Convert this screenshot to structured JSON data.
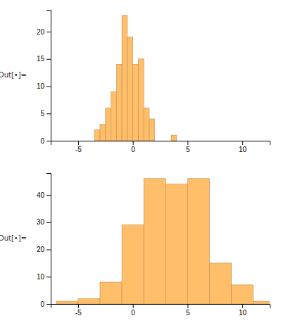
{
  "chart_data": [
    {
      "type": "histogram",
      "x": [
        -3.5,
        -3.0,
        -2.5,
        -2.0,
        -1.5,
        -1.0,
        -0.5,
        0.0,
        0.5,
        1.0,
        1.5,
        3.5
      ],
      "values": [
        2,
        3,
        6,
        9,
        14,
        23,
        19,
        14,
        15,
        6,
        4,
        1
      ],
      "bin_width": 0.5,
      "xlim": [
        -7.5,
        12.5
      ],
      "ylim": [
        0,
        24
      ],
      "xticks": [
        -5,
        0,
        5,
        10
      ],
      "yticks": [
        0,
        5,
        10,
        15,
        20
      ],
      "ylabel": "Out[•]=",
      "color": "#FFBE6A",
      "grid": false
    },
    {
      "type": "histogram",
      "x": [
        -7,
        -5,
        -3,
        -1,
        1,
        3,
        5,
        7,
        9,
        11
      ],
      "values": [
        1,
        2,
        8,
        29,
        46,
        44,
        46,
        15,
        7,
        1
      ],
      "bin_width": 2,
      "xlim": [
        -7.5,
        12.5
      ],
      "ylim": [
        0,
        48
      ],
      "xticks": [
        -5,
        0,
        5,
        10
      ],
      "yticks": [
        0,
        10,
        20,
        30,
        40
      ],
      "ylabel": "Out[•]=",
      "color": "#FFBE6A",
      "grid": false
    }
  ]
}
